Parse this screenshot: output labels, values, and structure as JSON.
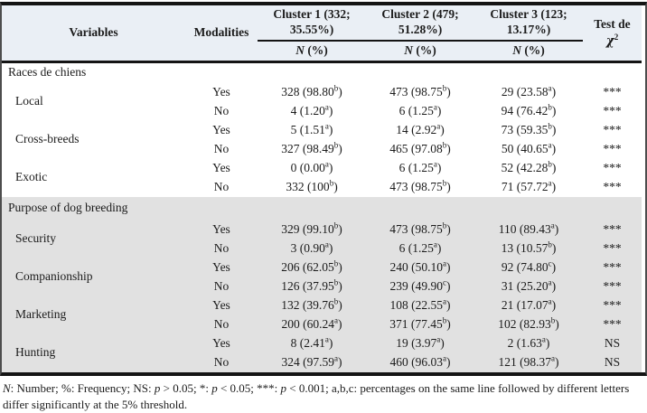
{
  "colors": {
    "header_bg": "#eaeff5",
    "shaded_bg": "#e1e1e1",
    "border_dark": "#141414",
    "text": "#1b1b1b"
  },
  "table": {
    "headers": {
      "variables": "Variables",
      "modalities": "Modalities",
      "clusters": [
        "Cluster 1 (332; 35.55%)",
        "Cluster 2 (479; 51.28%)",
        "Cluster 3 (123; 13.17%)"
      ],
      "n_label": "N",
      "pct_label": " (%)",
      "test_line1": "Test de",
      "test_chi": "χ",
      "test_exp": "2"
    },
    "sections": [
      {
        "title": "Races de chiens",
        "shaded": false,
        "variables": [
          {
            "name": "Local",
            "rows": [
              {
                "modality": "Yes",
                "cells": [
                  [
                    "328",
                    "98.80",
                    "b"
                  ],
                  [
                    "473",
                    "98.75",
                    "b"
                  ],
                  [
                    "29",
                    "23.58",
                    "a"
                  ]
                ],
                "test": "***"
              },
              {
                "modality": "No",
                "cells": [
                  [
                    "4",
                    "1.20",
                    "a"
                  ],
                  [
                    "6",
                    "1.25",
                    "a"
                  ],
                  [
                    "94",
                    "76.42",
                    "b"
                  ]
                ],
                "test": "***"
              }
            ]
          },
          {
            "name": "Cross-breeds",
            "rows": [
              {
                "modality": "Yes",
                "cells": [
                  [
                    "5",
                    "1.51",
                    "a"
                  ],
                  [
                    "14",
                    "2.92",
                    "a"
                  ],
                  [
                    "73",
                    "59.35",
                    "b"
                  ]
                ],
                "test": "***"
              },
              {
                "modality": "No",
                "cells": [
                  [
                    "327",
                    "98.49",
                    "b"
                  ],
                  [
                    "465",
                    "97.08",
                    "b"
                  ],
                  [
                    "50",
                    "40.65",
                    "a"
                  ]
                ],
                "test": "***"
              }
            ]
          },
          {
            "name": "Exotic",
            "rows": [
              {
                "modality": "Yes",
                "cells": [
                  [
                    "0",
                    "0.00",
                    "a"
                  ],
                  [
                    "6",
                    "1.25",
                    "a"
                  ],
                  [
                    "52",
                    "42.28",
                    "b"
                  ]
                ],
                "test": "***"
              },
              {
                "modality": "No",
                "cells": [
                  [
                    "332",
                    "100",
                    "b"
                  ],
                  [
                    "473",
                    "98.75",
                    "b"
                  ],
                  [
                    "71",
                    "57.72",
                    "a"
                  ]
                ],
                "test": "***"
              }
            ]
          }
        ]
      },
      {
        "title": "Purpose of dog breeding",
        "shaded": true,
        "variables": [
          {
            "name": "Security",
            "rows": [
              {
                "modality": "Yes",
                "cells": [
                  [
                    "329",
                    "99.10",
                    "b"
                  ],
                  [
                    "473",
                    "98.75",
                    "b"
                  ],
                  [
                    "110",
                    "89.43",
                    "a"
                  ]
                ],
                "test": "***"
              },
              {
                "modality": "No",
                "cells": [
                  [
                    "3",
                    "0.90",
                    "a"
                  ],
                  [
                    "6",
                    "1.25",
                    "a"
                  ],
                  [
                    "13",
                    "10.57",
                    "b"
                  ]
                ],
                "test": "***"
              }
            ]
          },
          {
            "name": "Companionship",
            "rows": [
              {
                "modality": "Yes",
                "cells": [
                  [
                    "206",
                    "62.05",
                    "b"
                  ],
                  [
                    "240",
                    "50.10",
                    "a"
                  ],
                  [
                    "92",
                    "74.80",
                    "c"
                  ]
                ],
                "test": "***"
              },
              {
                "modality": "No",
                "cells": [
                  [
                    "126",
                    "37.95",
                    "b"
                  ],
                  [
                    "239",
                    "49.90",
                    "c"
                  ],
                  [
                    "31",
                    "25.20",
                    "a"
                  ]
                ],
                "test": "***"
              }
            ]
          },
          {
            "name": "Marketing",
            "rows": [
              {
                "modality": "Yes",
                "cells": [
                  [
                    "132",
                    "39.76",
                    "b"
                  ],
                  [
                    "108",
                    "22.55",
                    "a"
                  ],
                  [
                    "21",
                    "17.07",
                    "a"
                  ]
                ],
                "test": "***"
              },
              {
                "modality": "No",
                "cells": [
                  [
                    "200",
                    "60.24",
                    "a"
                  ],
                  [
                    "371",
                    "77.45",
                    "b"
                  ],
                  [
                    "102",
                    "82.93",
                    "b"
                  ]
                ],
                "test": "***"
              }
            ]
          },
          {
            "name": "Hunting",
            "rows": [
              {
                "modality": "Yes",
                "cells": [
                  [
                    "8",
                    "2.41",
                    "a"
                  ],
                  [
                    "19",
                    "3.97",
                    "a"
                  ],
                  [
                    "2",
                    "1.63",
                    "a"
                  ]
                ],
                "test": "NS"
              },
              {
                "modality": "No",
                "cells": [
                  [
                    "324",
                    "97.59",
                    "a"
                  ],
                  [
                    "460",
                    "96.03",
                    "a"
                  ],
                  [
                    "121",
                    "98.37",
                    "a"
                  ]
                ],
                "test": "NS"
              }
            ]
          }
        ]
      }
    ]
  },
  "footnote": {
    "segments": [
      {
        "text": "N",
        "italic": true
      },
      {
        "text": ": Number; %: Frequency; NS: ",
        "italic": false
      },
      {
        "text": "p",
        "italic": true
      },
      {
        "text": " > 0.05; *: ",
        "italic": false
      },
      {
        "text": "p",
        "italic": true
      },
      {
        "text": " < 0.05; ***: ",
        "italic": false
      },
      {
        "text": "p",
        "italic": true
      },
      {
        "text": " < 0.001; a,b,c: percentages on the same line followed by different letters differ significantly at the 5% threshold.",
        "italic": false
      }
    ]
  }
}
